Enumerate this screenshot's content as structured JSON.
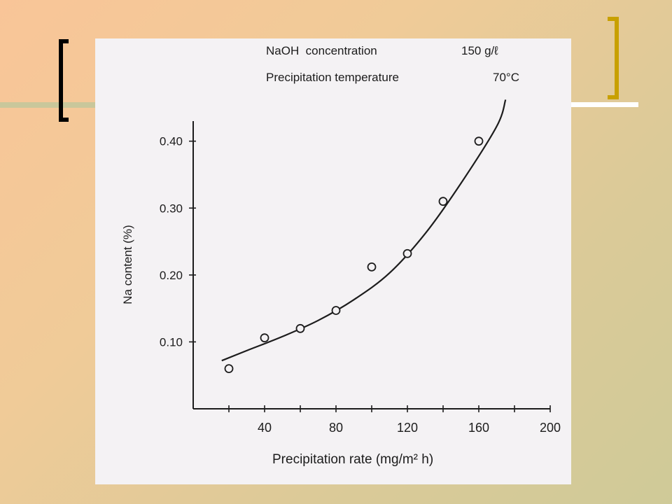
{
  "slide": {
    "colors": {
      "bracket_left": "#000000",
      "bracket_right": "#c8a000",
      "panel": "#f4f2f4"
    }
  },
  "annotations": {
    "concentration_label": "NaOH  concentration",
    "concentration_value": "150 g/ℓ",
    "temperature_label": "Precipitation temperature",
    "temperature_value": "70°C"
  },
  "chart_data": {
    "type": "scatter",
    "title": "",
    "xlabel": "Precipitation  rate (mg/m² h)",
    "ylabel": "Na content (%)",
    "xlim": [
      0,
      200
    ],
    "ylim": [
      0,
      0.43
    ],
    "x_ticks": [
      20,
      40,
      60,
      80,
      100,
      120,
      140,
      160,
      180,
      200
    ],
    "x_tick_labels": [
      "",
      "40",
      "",
      "80",
      "",
      "120",
      "",
      "160",
      "",
      "200"
    ],
    "y_ticks": [
      0.1,
      0.2,
      0.3,
      0.4
    ],
    "y_tick_labels": [
      "0.10",
      "0.20",
      "0.30",
      "0.40"
    ],
    "grid": false,
    "series": [
      {
        "kind": "points",
        "x": [
          20,
          40,
          60,
          80,
          100,
          120,
          140,
          160
        ],
        "y": [
          0.06,
          0.106,
          0.12,
          0.147,
          0.212,
          0.232,
          0.31,
          0.4
        ]
      },
      {
        "kind": "fitted-curve",
        "x": [
          16,
          30,
          50,
          70,
          90,
          110,
          130,
          150,
          170,
          175
        ],
        "y": [
          0.072,
          0.087,
          0.108,
          0.132,
          0.163,
          0.203,
          0.262,
          0.337,
          0.422,
          0.462
        ]
      }
    ]
  }
}
